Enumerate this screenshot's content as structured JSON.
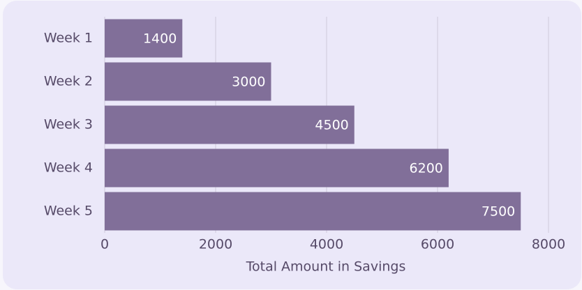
{
  "chart_data": {
    "type": "barh",
    "x_label": "Total Amount in Savings",
    "categories": [
      "Week 1",
      "Week 2",
      "Week 3",
      "Week 4",
      "Week 5"
    ],
    "values": [
      1400,
      3000,
      4500,
      6200,
      7500
    ],
    "color": "#816f99",
    "xlim": [
      0,
      8000
    ],
    "xticks": [
      0,
      2000,
      4000,
      6000,
      8000
    ],
    "grid": true
  }
}
